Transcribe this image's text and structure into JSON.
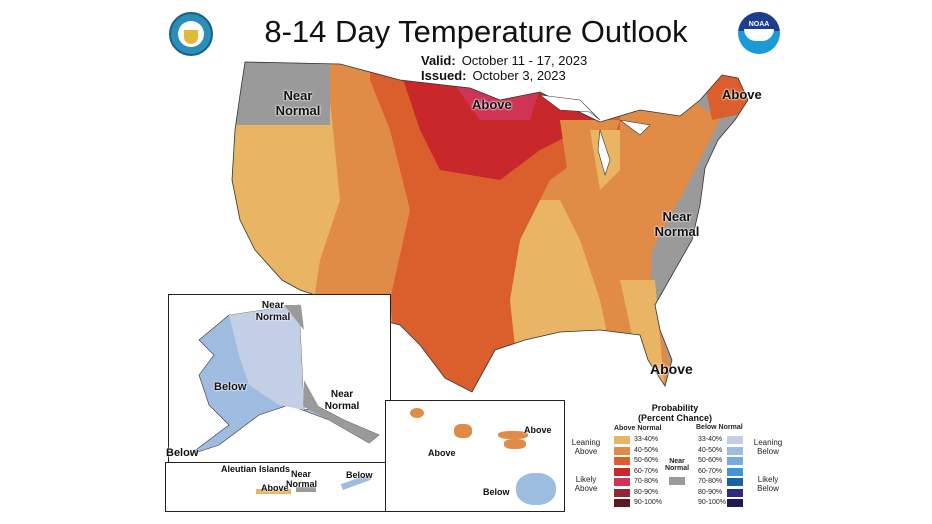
{
  "header": {
    "title": "8-14 Day Temperature Outlook",
    "valid_label": "Valid:",
    "valid": "October 11 - 17, 2023",
    "issued_label": "Issued:",
    "issued": "October 3, 2023"
  },
  "logos": {
    "left": "department-of-commerce-seal",
    "right": "NOAA",
    "right_text": "NOAA"
  },
  "map_labels": {
    "nw": "Near Normal",
    "north": "Above",
    "maine": "Above",
    "east": "Near Normal",
    "south": "Above"
  },
  "alaska": {
    "north": "Near Normal",
    "west": "Below",
    "southeast": "Near Normal",
    "southwest": "Below"
  },
  "aleutian": {
    "title": "Aleutian Islands",
    "above": "Above",
    "near": "Near Normal",
    "below": "Below"
  },
  "hawaii": {
    "east": "Above",
    "west": "Above",
    "big_island": "Below"
  },
  "legend": {
    "title": "Probability",
    "subtitle": "(Percent Chance)",
    "above_header": "Above Normal",
    "below_header": "Below Normal",
    "near": "Near Normal",
    "leaning_above": "Leaning Above",
    "likely_above": "Likely Above",
    "leaning_below": "Leaning Below",
    "likely_below": "Likely Below",
    "above": [
      {
        "range": "33-40%",
        "color": "#e9b464"
      },
      {
        "range": "40-50%",
        "color": "#e18c46"
      },
      {
        "range": "50-60%",
        "color": "#db5f2c"
      },
      {
        "range": "60-70%",
        "color": "#c9282a"
      },
      {
        "range": "70-80%",
        "color": "#cf3456"
      },
      {
        "range": "80-90%",
        "color": "#8e2a33"
      },
      {
        "range": "90-100%",
        "color": "#5e1a22"
      }
    ],
    "below": [
      {
        "range": "33-40%",
        "color": "#c3cfe6"
      },
      {
        "range": "40-50%",
        "color": "#9ebbe0"
      },
      {
        "range": "50-60%",
        "color": "#74acde"
      },
      {
        "range": "60-70%",
        "color": "#3f97da"
      },
      {
        "range": "70-80%",
        "color": "#1962a6"
      },
      {
        "range": "80-90%",
        "color": "#2e2a80"
      },
      {
        "range": "90-100%",
        "color": "#1d1a56"
      }
    ],
    "near_color": "#9a9a9a"
  }
}
